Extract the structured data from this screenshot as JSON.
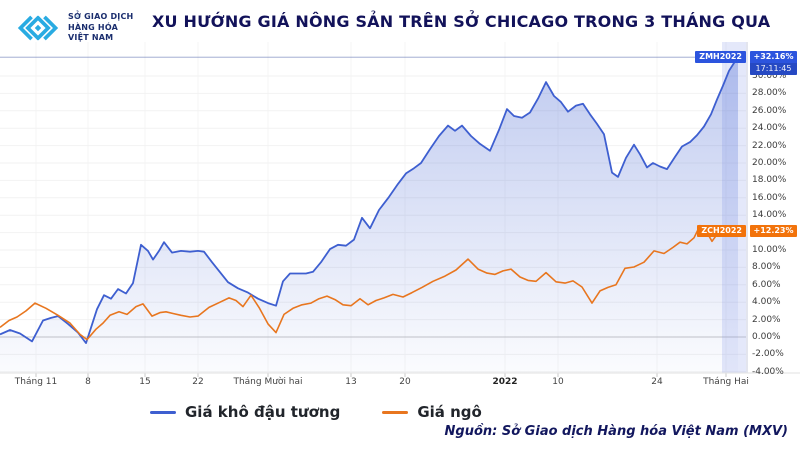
{
  "header": {
    "title": "XU HƯỚNG GIÁ NÔNG SẢN TRÊN SỞ CHICAGO TRONG 3 THÁNG QUA"
  },
  "logo": {
    "lines": [
      "SỞ GIAO DỊCH",
      "HÀNG HÓA",
      "VIỆT NAM"
    ],
    "trademark": "™",
    "mark_color": "#29ABE2",
    "text_color": "#1B2E6E"
  },
  "source": {
    "text": "Nguồn: Sở Giao dịch Hàng hóa Việt Nam (MXV)"
  },
  "chart_data": {
    "type": "line",
    "title": "XU HƯỚNG GIÁ NÔNG SẢN TRÊN SỞ CHICAGO TRONG 3 THÁNG QUA",
    "legend_position": "bottom",
    "grid": true,
    "highlight_band_color": "rgba(130,152,230,0.22)",
    "zero_line_color": "#c6c6c6",
    "grid_color": "#f2f2f2",
    "y_axis": {
      "unit": "%",
      "min": -4,
      "max": 30,
      "step": 2,
      "position": "right",
      "tick_values": [
        30,
        28,
        26,
        24,
        22,
        20,
        18,
        16,
        14,
        12,
        10,
        8,
        6,
        4,
        2,
        0,
        -2,
        -4
      ],
      "tick_labels": [
        "30.00%",
        "28.00%",
        "26.00%",
        "24.00%",
        "22.00%",
        "20.00%",
        "18.00%",
        "16.00%",
        "14.00%",
        "12.00%",
        "10.00%",
        "8.00%",
        "6.00%",
        "4.00%",
        "2.00%",
        "0.00%",
        "-2.00%",
        "-4.00%"
      ]
    },
    "x_axis": {
      "ticks": [
        {
          "label": "Tháng 11",
          "x": 36,
          "bold": false
        },
        {
          "label": "8",
          "x": 88,
          "bold": false
        },
        {
          "label": "15",
          "x": 145,
          "bold": false
        },
        {
          "label": "22",
          "x": 198,
          "bold": false
        },
        {
          "label": "Tháng Mười hai",
          "x": 268,
          "bold": false
        },
        {
          "label": "13",
          "x": 351,
          "bold": false
        },
        {
          "label": "20",
          "x": 405,
          "bold": false
        },
        {
          "label": "2022",
          "x": 505,
          "bold": true
        },
        {
          "label": "10",
          "x": 558,
          "bold": false
        },
        {
          "label": "24",
          "x": 657,
          "bold": false
        },
        {
          "label": "Tháng Hai",
          "x": 726,
          "bold": false
        }
      ]
    },
    "series": [
      {
        "name": "Giá khô đậu tương",
        "symbol": "ZMH2022",
        "change_percent": "+32.16%",
        "last_update_time": "17:11:45",
        "line_color": "#3E5FD0",
        "tag_color": "#2C54DE",
        "area_fill": true,
        "points": [
          [
            0,
            0.3
          ],
          [
            10,
            0.8
          ],
          [
            20,
            0.4
          ],
          [
            32,
            -0.5
          ],
          [
            43,
            1.9
          ],
          [
            51,
            2.2
          ],
          [
            58,
            2.4
          ],
          [
            68,
            1.5
          ],
          [
            78,
            0.5
          ],
          [
            86,
            -0.7
          ],
          [
            97,
            3.2
          ],
          [
            104,
            4.8
          ],
          [
            111,
            4.4
          ],
          [
            118,
            5.5
          ],
          [
            126,
            5.0
          ],
          [
            133,
            6.2
          ],
          [
            141,
            10.6
          ],
          [
            148,
            9.9
          ],
          [
            153,
            8.9
          ],
          [
            159,
            9.9
          ],
          [
            164,
            10.9
          ],
          [
            172,
            9.7
          ],
          [
            181,
            9.9
          ],
          [
            190,
            9.8
          ],
          [
            198,
            9.9
          ],
          [
            204,
            9.8
          ],
          [
            212,
            8.6
          ],
          [
            219,
            7.6
          ],
          [
            228,
            6.3
          ],
          [
            238,
            5.6
          ],
          [
            248,
            5.1
          ],
          [
            258,
            4.4
          ],
          [
            268,
            3.9
          ],
          [
            276,
            3.6
          ],
          [
            283,
            6.4
          ],
          [
            290,
            7.3
          ],
          [
            298,
            7.3
          ],
          [
            306,
            7.3
          ],
          [
            313,
            7.5
          ],
          [
            321,
            8.6
          ],
          [
            330,
            10.1
          ],
          [
            338,
            10.6
          ],
          [
            346,
            10.5
          ],
          [
            354,
            11.2
          ],
          [
            362,
            13.7
          ],
          [
            370,
            12.5
          ],
          [
            379,
            14.6
          ],
          [
            389,
            16.1
          ],
          [
            398,
            17.6
          ],
          [
            406,
            18.8
          ],
          [
            414,
            19.4
          ],
          [
            421,
            20.0
          ],
          [
            430,
            21.6
          ],
          [
            439,
            23.1
          ],
          [
            448,
            24.3
          ],
          [
            455,
            23.7
          ],
          [
            462,
            24.3
          ],
          [
            471,
            23.1
          ],
          [
            480,
            22.2
          ],
          [
            490,
            21.4
          ],
          [
            499,
            23.8
          ],
          [
            507,
            26.2
          ],
          [
            514,
            25.4
          ],
          [
            522,
            25.2
          ],
          [
            530,
            25.8
          ],
          [
            538,
            27.4
          ],
          [
            546,
            29.3
          ],
          [
            554,
            27.7
          ],
          [
            561,
            27.0
          ],
          [
            568,
            25.9
          ],
          [
            576,
            26.6
          ],
          [
            583,
            26.8
          ],
          [
            590,
            25.6
          ],
          [
            597,
            24.5
          ],
          [
            604,
            23.3
          ],
          [
            612,
            18.9
          ],
          [
            618,
            18.4
          ],
          [
            626,
            20.6
          ],
          [
            634,
            22.1
          ],
          [
            640,
            21.0
          ],
          [
            647,
            19.5
          ],
          [
            653,
            20.0
          ],
          [
            660,
            19.6
          ],
          [
            667,
            19.3
          ],
          [
            675,
            20.7
          ],
          [
            682,
            21.9
          ],
          [
            690,
            22.4
          ],
          [
            697,
            23.2
          ],
          [
            704,
            24.2
          ],
          [
            711,
            25.6
          ],
          [
            717,
            27.3
          ],
          [
            723,
            28.9
          ],
          [
            729,
            30.6
          ],
          [
            734,
            31.5
          ],
          [
            738,
            32.16
          ]
        ]
      },
      {
        "name": "Giá ngô",
        "symbol": "ZCH2022",
        "change_percent": "+12.23%",
        "line_color": "#E8761F",
        "tag_color": "#F2730B",
        "area_fill": false,
        "points": [
          [
            0,
            1.1
          ],
          [
            9,
            1.9
          ],
          [
            17,
            2.3
          ],
          [
            26,
            3.0
          ],
          [
            35,
            3.9
          ],
          [
            46,
            3.3
          ],
          [
            58,
            2.5
          ],
          [
            70,
            1.6
          ],
          [
            80,
            0.3
          ],
          [
            87,
            -0.3
          ],
          [
            96,
            0.9
          ],
          [
            103,
            1.6
          ],
          [
            110,
            2.5
          ],
          [
            119,
            2.9
          ],
          [
            127,
            2.6
          ],
          [
            136,
            3.5
          ],
          [
            143,
            3.8
          ],
          [
            152,
            2.4
          ],
          [
            160,
            2.8
          ],
          [
            166,
            2.9
          ],
          [
            173,
            2.7
          ],
          [
            181,
            2.5
          ],
          [
            190,
            2.3
          ],
          [
            198,
            2.4
          ],
          [
            209,
            3.4
          ],
          [
            220,
            4.0
          ],
          [
            229,
            4.5
          ],
          [
            236,
            4.2
          ],
          [
            243,
            3.5
          ],
          [
            251,
            4.8
          ],
          [
            259,
            3.4
          ],
          [
            268,
            1.5
          ],
          [
            276,
            0.5
          ],
          [
            284,
            2.6
          ],
          [
            293,
            3.3
          ],
          [
            302,
            3.7
          ],
          [
            311,
            3.9
          ],
          [
            319,
            4.4
          ],
          [
            327,
            4.7
          ],
          [
            335,
            4.3
          ],
          [
            343,
            3.7
          ],
          [
            351,
            3.6
          ],
          [
            360,
            4.4
          ],
          [
            368,
            3.7
          ],
          [
            376,
            4.2
          ],
          [
            384,
            4.5
          ],
          [
            393,
            4.9
          ],
          [
            403,
            4.6
          ],
          [
            412,
            5.1
          ],
          [
            422,
            5.7
          ],
          [
            433,
            6.4
          ],
          [
            445,
            7.0
          ],
          [
            456,
            7.7
          ],
          [
            468,
            8.95
          ],
          [
            478,
            7.8
          ],
          [
            487,
            7.35
          ],
          [
            495,
            7.2
          ],
          [
            503,
            7.6
          ],
          [
            511,
            7.8
          ],
          [
            520,
            6.9
          ],
          [
            528,
            6.5
          ],
          [
            536,
            6.4
          ],
          [
            546,
            7.4
          ],
          [
            556,
            6.35
          ],
          [
            565,
            6.2
          ],
          [
            573,
            6.45
          ],
          [
            582,
            5.75
          ],
          [
            592,
            3.9
          ],
          [
            600,
            5.3
          ],
          [
            608,
            5.7
          ],
          [
            616,
            6.0
          ],
          [
            625,
            7.9
          ],
          [
            634,
            8.05
          ],
          [
            644,
            8.6
          ],
          [
            654,
            9.9
          ],
          [
            664,
            9.6
          ],
          [
            673,
            10.3
          ],
          [
            680,
            10.9
          ],
          [
            687,
            10.7
          ],
          [
            694,
            11.4
          ],
          [
            700,
            12.8
          ],
          [
            706,
            12.2
          ],
          [
            712,
            11.0
          ],
          [
            719,
            12.1
          ],
          [
            726,
            11.6
          ],
          [
            732,
            11.9
          ],
          [
            738,
            12.23
          ]
        ]
      }
    ]
  }
}
